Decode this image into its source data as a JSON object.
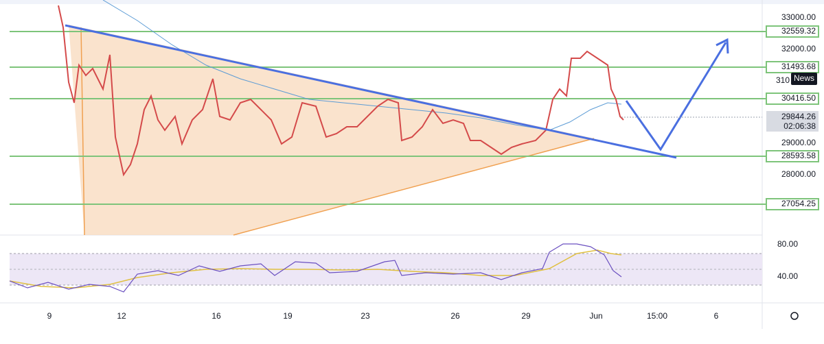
{
  "price_axis": {
    "labels": [
      "33000.00",
      "32000.00",
      "29000.00",
      "28000.00"
    ]
  },
  "levels": [
    "32559.32",
    "31493.68",
    "30416.50",
    "28593.58",
    "27054.25"
  ],
  "partial_label": "310",
  "news_button": "News",
  "current_price": {
    "price": "29844.26",
    "countdown": "02:06:38"
  },
  "rsi_axis": {
    "labels": [
      "80.00",
      "40.00"
    ]
  },
  "time_axis": {
    "labels": [
      "9",
      "12",
      "16",
      "19",
      "23",
      "26",
      "29",
      "Jun",
      "15:00",
      "6"
    ]
  }
}
